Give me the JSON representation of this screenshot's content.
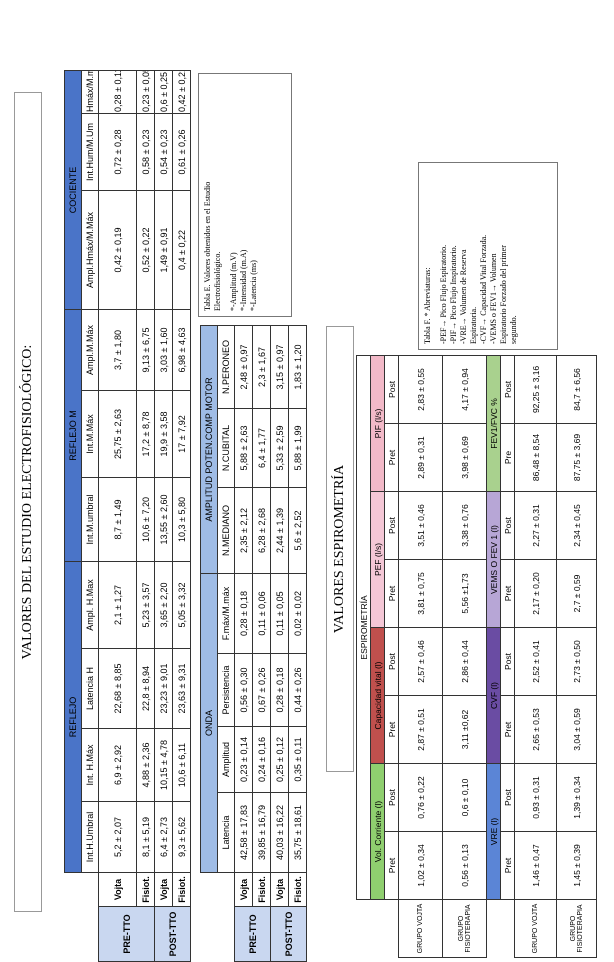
{
  "electro": {
    "title": "VALORES DEL ESTUDIO ELECTROFISIOLÓGICO:",
    "groups": {
      "reflejo": "REFLEJO",
      "reflejo_m": "REFLEJO M",
      "cociente": "COCIENTE",
      "onda": "ONDA",
      "amplitud": "AMPLITUD POTEN.COMP MOTOR"
    },
    "cols1": [
      "Int.H.Umbral",
      "Int. H.Máx",
      "Latencia H",
      "Ampl. H.Max",
      "Int.M.umbral",
      "Int.M.Máx",
      "Ampl.M.Máx",
      "Ampl.Hmáx/M.Máx",
      "Int.Hum/M.Um",
      "Hmáx/M.máx"
    ],
    "cols2": [
      "Latencia",
      "Amplitud",
      "Persistencia",
      "F.máx/M.máx",
      "N.MEDIANO",
      "N.CUBITAL",
      "N.PERONEO"
    ],
    "phase_pre": "PRE-TTO",
    "phase_post": "POST-TTO",
    "grp_vojta": "Vojta",
    "grp_fisiot": "Fisiot.",
    "t1_rows": [
      [
        "5,2 ± 2,07",
        "6,9 ± 2,92",
        "22,68 ± 8,85",
        "2,1 ± 1,27",
        "8,7 ± 1,49",
        "25,75 ± 2,63",
        "3,7 ± 1,80",
        "0,42 ± 0,19",
        "0,72 ± 0,28",
        "0,28 ± 0,11"
      ],
      [
        "8,1 ± 5,19",
        "4,88 ± 2,36",
        "22,8 ± 8,94",
        "5,23 ± 3,57",
        "10,6 ± 7,20",
        "17,2 ± 8,78",
        "9,13 ± 6,75",
        "0,52 ± 0,22",
        "0,58 ± 0,23",
        "0,23 ± 0,05"
      ],
      [
        "6,4 ± 2,73",
        "10,15 ± 4,78",
        "23,23 ± 9,01",
        "3,65 ± 2,20",
        "13,55 ± 2,60",
        "19,9 ± 3,58",
        "3,03 ± 1,60",
        "1,49 ± 0,91",
        "0,54 ± 0,23",
        "0,6 ± 0,25"
      ],
      [
        "9,3 ± 5,62",
        "10,6 ± 6,11",
        "23,63 ± 9,31",
        "5,05 ± 3,32",
        "10,3 ± 5,80",
        "17 ± 7,92",
        "6,98 ± 4,63",
        "0,4 ± 0,22",
        "0,61 ± 0,26",
        "0,42 ± 0,21"
      ]
    ],
    "t2_rows": [
      [
        "42,58 ± 17,83",
        "0,23 ± 0,14",
        "0,56 ± 0,30",
        "0,28 ± 0,18",
        "2,35 ± 2,12",
        "5,88 ± 2,63",
        "2,48 ± 0,97"
      ],
      [
        "39,85 ± 16,79",
        "0,24 ± 0,16",
        "0,67 ± 0,26",
        "0,11 ± 0,06",
        "6,28 ± 2,68",
        "6,4 ± 1,77",
        "2,3 ± 1,67"
      ],
      [
        "40,03 ± 16,22",
        "0,25 ± 0,12",
        "0,28 ± 0,18",
        "0,11 ± 0,05",
        "2,44 ± 1,39",
        "5,33 ± 2,59",
        "3,15 ± 0,97"
      ],
      [
        "35,75 ± 18,61",
        "0,35 ± 0,11",
        "0,44 ± 0,26",
        "0,02 ± 0,02",
        "5,6 ± 2,52",
        "5,88 ± 1,99",
        "1,83 ± 1,20"
      ]
    ],
    "legend": [
      "Tabla E. Valores obtenidos en el Estudio",
      "Electrofisiológico.",
      "",
      "*-Amplitud (m.V)",
      "*-Intensidad (m.A)",
      "*-Latencia (ms)"
    ]
  },
  "spiro": {
    "title": "VALORES ESPIROMETRÍA",
    "header": "ESPIROMETRÍA",
    "groups_top": [
      "Vol. Corriente (l)",
      "Capacidad vital (l)",
      "PEF (l/s)",
      "PIF (l/s)"
    ],
    "groups_bottom": [
      "VRE (l)",
      "CVF (l)",
      "VEMS O FEV 1 (l)",
      "FEV1/FVC %"
    ],
    "pret": "Pret",
    "post": "Post",
    "pre": "Pre",
    "row_vojta": "GRUPO VOJTA",
    "row_fisio": "GRUPO FISIOTERAPIA",
    "top_rows": [
      [
        "1,02 ± 0,34",
        "0,76 ± 0,22",
        "2,87 ± 0,51",
        "2,57 ± 0,46",
        "3,81 ± 0,75",
        "3,51 ± 0,46",
        "2,89 ± 0,31",
        "2,83 ± 0,55"
      ],
      [
        "0,56 ± 0,13",
        "0,6 ± 0,10",
        "3,11 ±0,62",
        "2,86 ± 0,44",
        "5,56 ±1,73",
        "3,38 ± 0,76",
        "3,98 ± 0,69",
        "4,17 ± 0,94"
      ]
    ],
    "bottom_rows": [
      [
        "1,46 ± 0,47",
        "0,93 ± 0,31",
        "2,65 ± 0,53",
        "2,52 ± 0,41",
        "2,17 ± 0,20",
        "2,27 ± 0,31",
        "86,48 ± 8,54",
        "92,25 ± 3,16"
      ],
      [
        "1,45 ± 0,39",
        "1,39 ± 0,34",
        "3,04 ± 0,59",
        "2,73 ± 0,50",
        "2,7 ± 0,59",
        "2,34 ± 0,45",
        "87,75 ± 3,69",
        "84,7 ± 6,56"
      ]
    ],
    "legend": [
      "Tabla F. * Abreviaturas:",
      "",
      "-PEF→ Pico Flujo Espiratorio.",
      "-PIF→ Pico Flujo Inspiratorio.",
      "-VRE→ Volumen de Reserva",
      "Espiratoria.",
      "-CVF→ Capacidad Vital Forzada.",
      "-VEMS o FEV1→ Volumen",
      "Espiratorio Forzado del primer",
      "segundo."
    ]
  }
}
